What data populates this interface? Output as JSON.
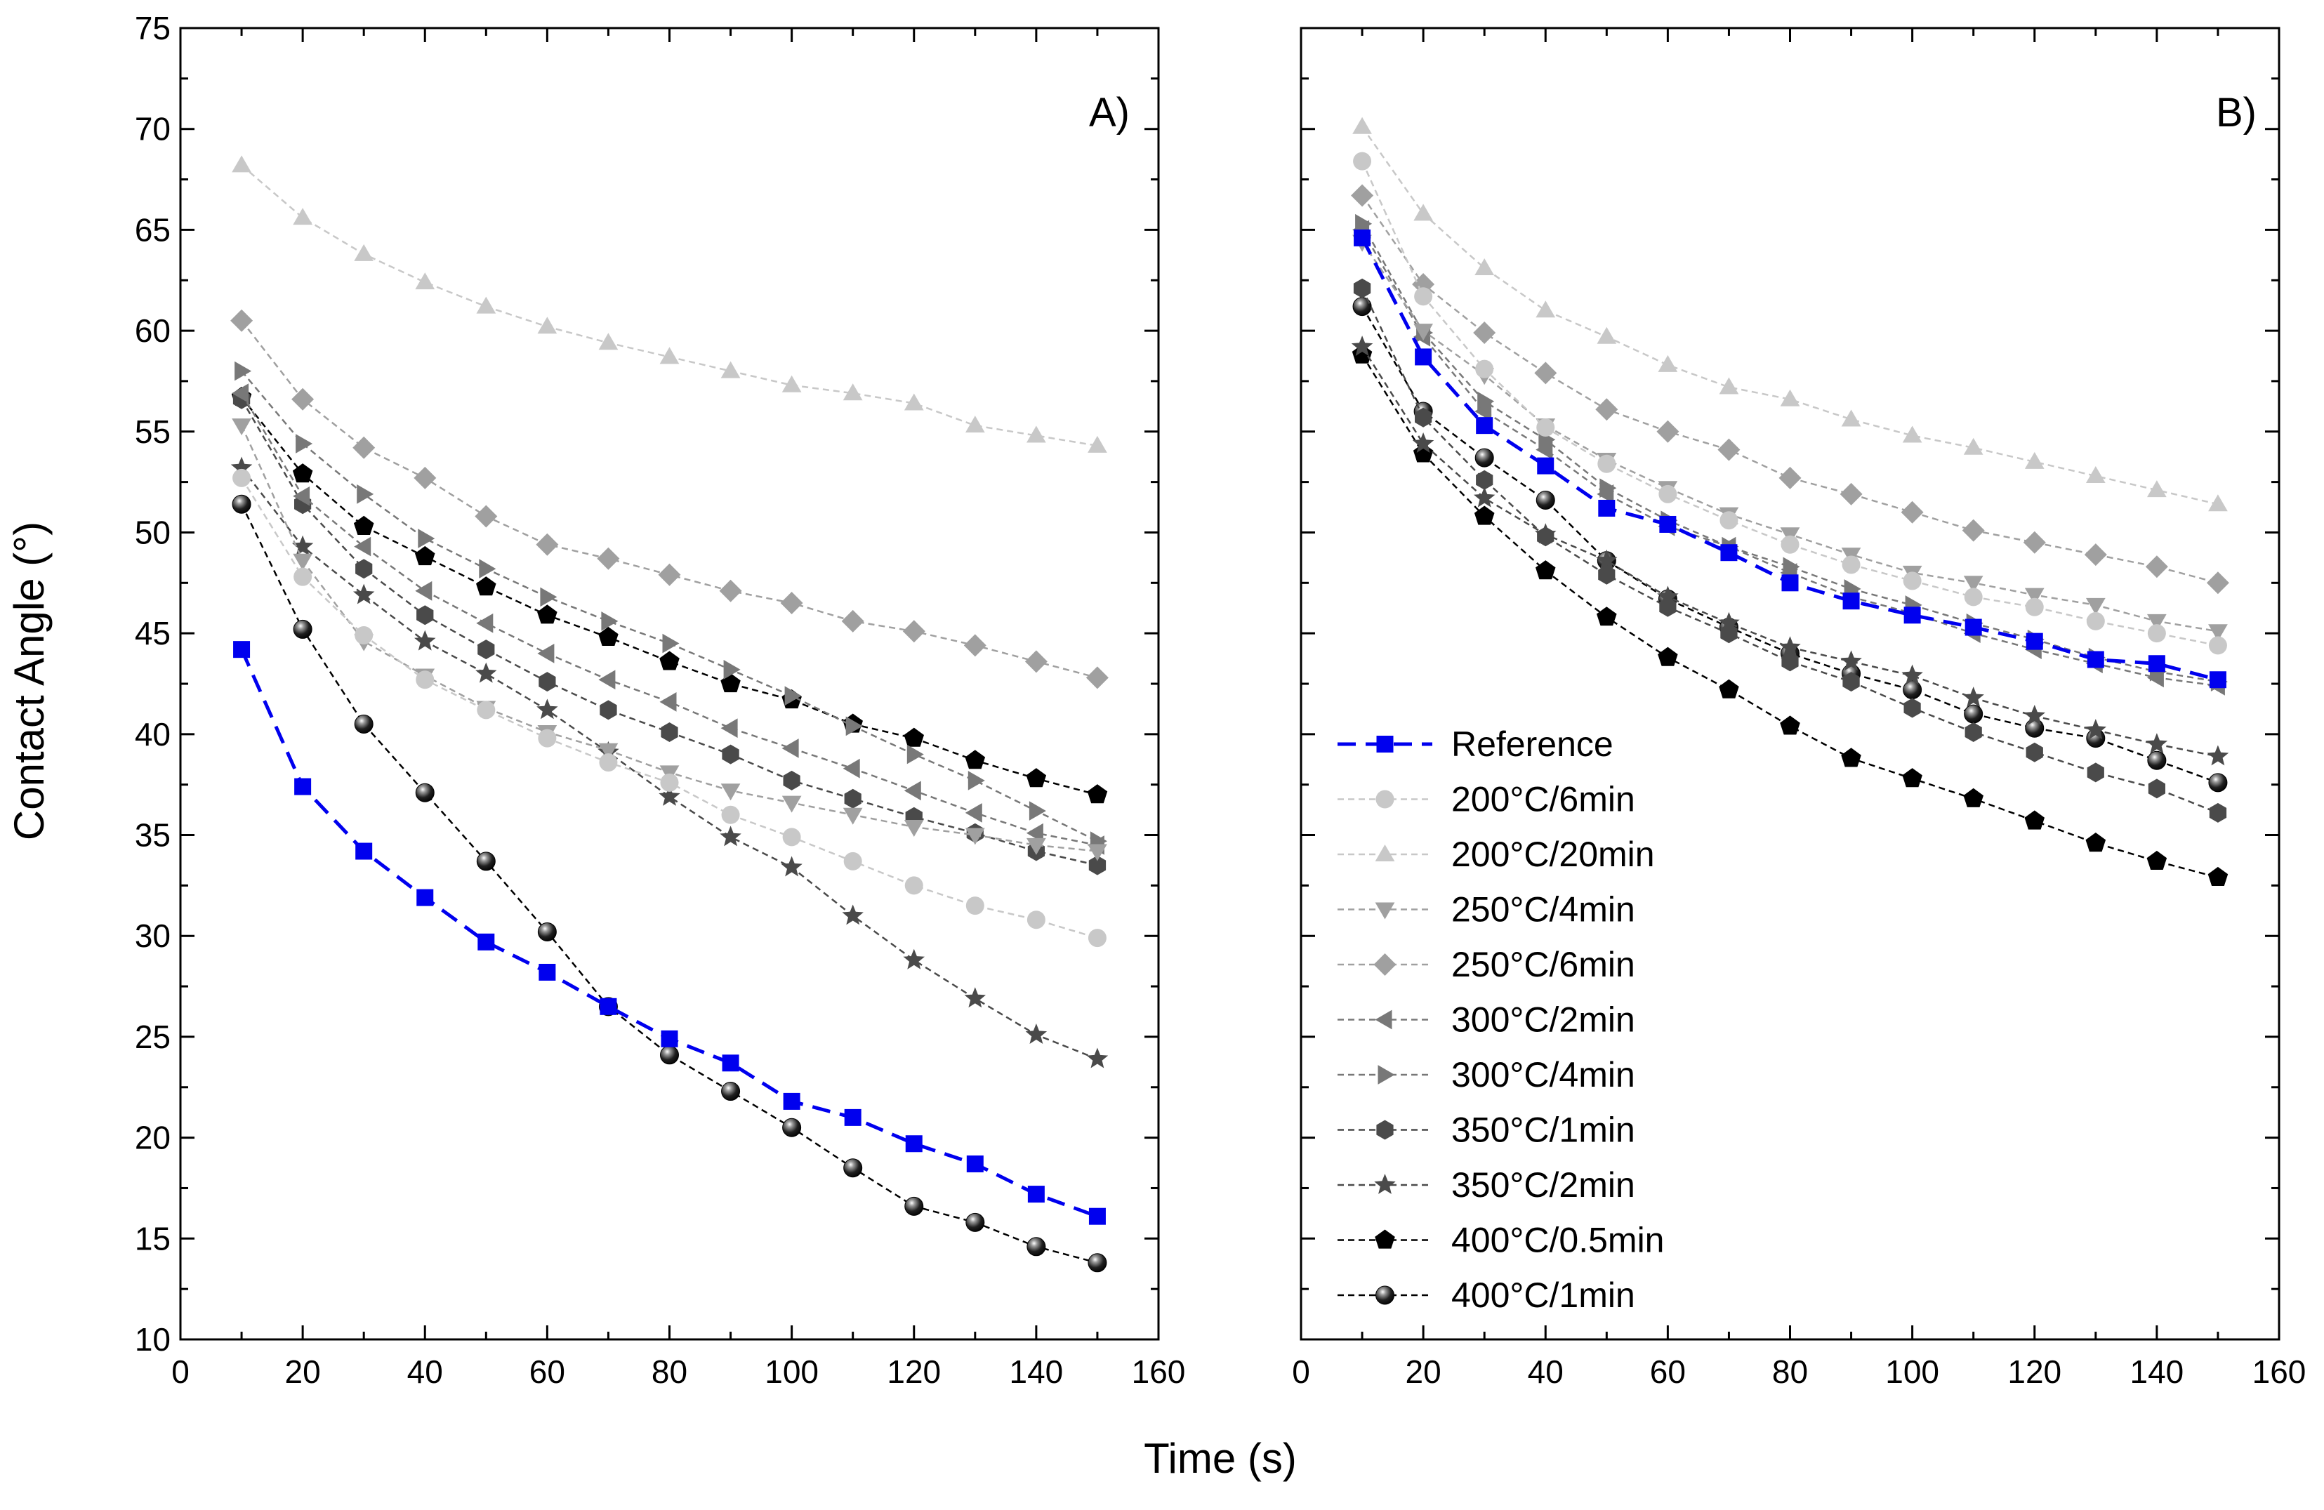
{
  "figure": {
    "ylabel": "Contact Angle (°)",
    "xlabel": "Time (s)"
  },
  "legend": [
    {
      "name": "Reference",
      "color": "#0000ee",
      "marker": "square",
      "dash": "long"
    },
    {
      "name": "200°C/6min",
      "color": "#c8c8c8",
      "marker": "circle",
      "dash": "short"
    },
    {
      "name": "200°C/20min",
      "color": "#c8c8c8",
      "marker": "triangle-up",
      "dash": "short"
    },
    {
      "name": "250°C/4min",
      "color": "#a0a0a0",
      "marker": "triangle-down",
      "dash": "short"
    },
    {
      "name": "250°C/6min",
      "color": "#a0a0a0",
      "marker": "diamond",
      "dash": "short"
    },
    {
      "name": "300°C/2min",
      "color": "#787878",
      "marker": "triangle-left",
      "dash": "short"
    },
    {
      "name": "300°C/4min",
      "color": "#787878",
      "marker": "triangle-right",
      "dash": "short"
    },
    {
      "name": "350°C/1min",
      "color": "#4a4a4a",
      "marker": "hexagon",
      "dash": "short"
    },
    {
      "name": "350°C/2min",
      "color": "#4a4a4a",
      "marker": "star",
      "dash": "short"
    },
    {
      "name": "400°C/0.5min",
      "color": "#000000",
      "marker": "pentagon",
      "dash": "short"
    },
    {
      "name": "400°C/1min",
      "color": "#000000",
      "marker": "sphere",
      "dash": "short"
    }
  ],
  "chart_data": [
    {
      "type": "line",
      "panel_label": "A)",
      "xlabel": "Time (s)",
      "ylabel": "Contact Angle (°)",
      "xlim": [
        0,
        160
      ],
      "ylim": [
        10,
        75
      ],
      "xticks": [
        0,
        20,
        40,
        60,
        80,
        100,
        120,
        140,
        160
      ],
      "yticks": [
        10,
        15,
        20,
        25,
        30,
        35,
        40,
        45,
        50,
        55,
        60,
        65,
        70,
        75
      ],
      "x": [
        10,
        20,
        30,
        40,
        50,
        60,
        70,
        80,
        90,
        100,
        110,
        120,
        130,
        140,
        150
      ],
      "series": [
        {
          "name": "Reference",
          "values": [
            44.2,
            37.4,
            34.2,
            31.9,
            29.7,
            28.2,
            26.5,
            24.9,
            23.7,
            21.8,
            21.0,
            19.7,
            18.7,
            17.2,
            16.1
          ]
        },
        {
          "name": "200°C/6min",
          "values": [
            52.7,
            47.8,
            44.9,
            42.7,
            41.2,
            39.8,
            38.6,
            37.6,
            36.0,
            34.9,
            33.7,
            32.5,
            31.5,
            30.8,
            29.9
          ]
        },
        {
          "name": "200°C/20min",
          "values": [
            68.2,
            65.6,
            63.8,
            62.4,
            61.2,
            60.2,
            59.4,
            58.7,
            58.0,
            57.3,
            56.9,
            56.4,
            55.3,
            54.8,
            54.3
          ]
        },
        {
          "name": "250°C/4min",
          "values": [
            55.3,
            48.6,
            44.6,
            42.9,
            41.3,
            40.1,
            39.2,
            38.1,
            37.2,
            36.6,
            36.0,
            35.4,
            35.0,
            34.5,
            34.2
          ]
        },
        {
          "name": "250°C/6min",
          "values": [
            60.5,
            56.6,
            54.2,
            52.7,
            50.8,
            49.4,
            48.7,
            47.9,
            47.1,
            46.5,
            45.6,
            45.1,
            44.4,
            43.6,
            42.8
          ]
        },
        {
          "name": "300°C/2min",
          "values": [
            56.9,
            51.8,
            49.3,
            47.1,
            45.5,
            44.0,
            42.7,
            41.6,
            40.3,
            39.3,
            38.3,
            37.2,
            36.1,
            35.1,
            34.5
          ]
        },
        {
          "name": "300°C/4min",
          "values": [
            58.0,
            54.4,
            51.9,
            49.7,
            48.2,
            46.8,
            45.6,
            44.5,
            43.2,
            41.9,
            40.4,
            39.0,
            37.7,
            36.2,
            34.7
          ]
        },
        {
          "name": "350°C/1min",
          "values": [
            56.6,
            51.4,
            48.2,
            45.9,
            44.2,
            42.6,
            41.2,
            40.1,
            39.0,
            37.7,
            36.8,
            35.9,
            35.1,
            34.2,
            33.5
          ]
        },
        {
          "name": "350°C/2min",
          "values": [
            53.2,
            49.3,
            46.9,
            44.6,
            43.0,
            41.2,
            39.1,
            36.9,
            34.9,
            33.4,
            31.0,
            28.8,
            26.9,
            25.1,
            23.9
          ]
        },
        {
          "name": "400°C/0.5min",
          "values": [
            56.7,
            52.9,
            50.3,
            48.8,
            47.3,
            45.9,
            44.8,
            43.6,
            42.5,
            41.7,
            40.5,
            39.8,
            38.7,
            37.8,
            37.0
          ]
        },
        {
          "name": "400°C/1min",
          "values": [
            51.4,
            45.2,
            40.5,
            37.1,
            33.7,
            30.2,
            26.5,
            24.1,
            22.3,
            20.5,
            18.5,
            16.6,
            15.8,
            14.6,
            13.8
          ]
        }
      ]
    },
    {
      "type": "line",
      "panel_label": "B)",
      "xlabel": "Time (s)",
      "ylabel": "Contact Angle (°)",
      "xlim": [
        0,
        160
      ],
      "ylim": [
        10,
        75
      ],
      "xticks": [
        0,
        20,
        40,
        60,
        80,
        100,
        120,
        140,
        160
      ],
      "yticks": [
        10,
        15,
        20,
        25,
        30,
        35,
        40,
        45,
        50,
        55,
        60,
        65,
        70,
        75
      ],
      "legend_position": "bottom-left",
      "x": [
        10,
        20,
        30,
        40,
        50,
        60,
        70,
        80,
        90,
        100,
        110,
        120,
        130,
        140,
        150
      ],
      "series": [
        {
          "name": "Reference",
          "values": [
            64.6,
            58.7,
            55.3,
            53.3,
            51.2,
            50.4,
            49.0,
            47.5,
            46.6,
            45.9,
            45.3,
            44.6,
            43.7,
            43.5,
            42.7
          ]
        },
        {
          "name": "200°C/6min",
          "values": [
            68.4,
            61.7,
            58.1,
            55.2,
            53.4,
            51.9,
            50.6,
            49.4,
            48.4,
            47.6,
            46.8,
            46.3,
            45.6,
            45.0,
            44.4
          ]
        },
        {
          "name": "200°C/20min",
          "values": [
            70.1,
            65.8,
            63.1,
            61.0,
            59.7,
            58.3,
            57.2,
            56.6,
            55.6,
            54.8,
            54.2,
            53.5,
            52.8,
            52.1,
            51.4
          ]
        },
        {
          "name": "250°C/4min",
          "values": [
            64.4,
            60.0,
            57.8,
            55.3,
            53.6,
            52.2,
            50.9,
            49.9,
            48.9,
            48.0,
            47.5,
            46.9,
            46.4,
            45.6,
            45.1
          ]
        },
        {
          "name": "250°C/6min",
          "values": [
            66.7,
            62.3,
            59.9,
            57.9,
            56.1,
            55.0,
            54.1,
            52.7,
            51.9,
            51.0,
            50.1,
            49.5,
            48.9,
            48.3,
            47.5
          ]
        },
        {
          "name": "300°C/2min",
          "values": [
            65.0,
            59.7,
            56.0,
            54.1,
            51.9,
            50.3,
            49.3,
            48.0,
            46.8,
            46.0,
            45.0,
            44.2,
            43.5,
            42.8,
            42.4
          ]
        },
        {
          "name": "300°C/4min",
          "values": [
            65.3,
            59.9,
            56.5,
            54.6,
            52.2,
            50.6,
            49.3,
            48.3,
            47.2,
            46.4,
            45.5,
            44.7,
            43.8,
            43.1,
            42.6
          ]
        },
        {
          "name": "350°C/1min",
          "values": [
            62.1,
            55.7,
            52.6,
            49.8,
            47.9,
            46.3,
            45.0,
            43.6,
            42.6,
            41.3,
            40.1,
            39.1,
            38.1,
            37.3,
            36.1
          ]
        },
        {
          "name": "350°C/2min",
          "values": [
            59.2,
            54.4,
            51.7,
            49.9,
            48.6,
            46.8,
            45.5,
            44.3,
            43.6,
            42.9,
            41.8,
            40.9,
            40.2,
            39.5,
            38.9
          ]
        },
        {
          "name": "400°C/0.5min",
          "values": [
            58.8,
            53.9,
            50.8,
            48.1,
            45.8,
            43.8,
            42.2,
            40.4,
            38.8,
            37.8,
            36.8,
            35.7,
            34.6,
            33.7,
            32.9
          ]
        },
        {
          "name": "400°C/1min",
          "values": [
            61.2,
            56.0,
            53.7,
            51.6,
            48.6,
            46.7,
            45.3,
            44.0,
            43.0,
            42.2,
            41.0,
            40.3,
            39.8,
            38.7,
            37.6
          ]
        }
      ]
    }
  ]
}
